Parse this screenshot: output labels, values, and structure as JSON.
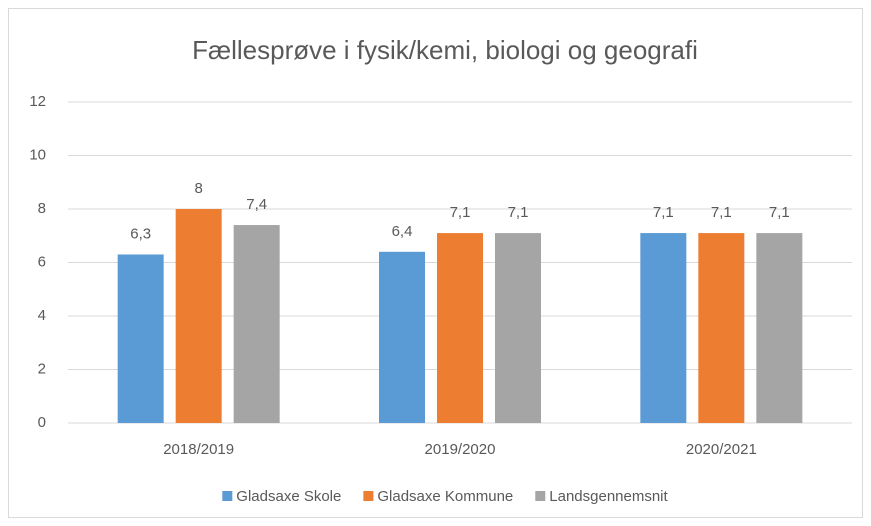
{
  "chart_data": {
    "type": "bar",
    "title": "Fællesprøve i fysik/kemi, biologi og geografi",
    "categories": [
      "2018/2019",
      "2019/2020",
      "2020/2021"
    ],
    "series": [
      {
        "name": "Gladsaxe Skole",
        "color": "#5b9bd5",
        "values": [
          6.3,
          6.4,
          7.1
        ],
        "value_labels": [
          "6,3",
          "6,4",
          "7,1"
        ]
      },
      {
        "name": "Gladsaxe Kommune",
        "color": "#ed7d31",
        "values": [
          8,
          7.1,
          7.1
        ],
        "value_labels": [
          "8",
          "7,1",
          "7,1"
        ]
      },
      {
        "name": "Landsgennemsnit",
        "color": "#a5a5a5",
        "values": [
          7.4,
          7.1,
          7.1
        ],
        "value_labels": [
          "7,4",
          "7,1",
          "7,1"
        ]
      }
    ],
    "ylim": [
      0,
      12
    ],
    "yticks": [
      0,
      2,
      4,
      6,
      8,
      10,
      12
    ],
    "grid": true,
    "legend": "bottom"
  }
}
